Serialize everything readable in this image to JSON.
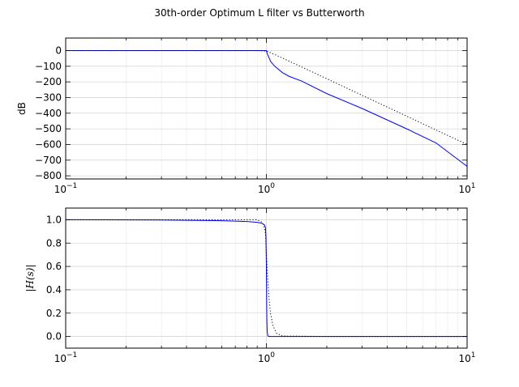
{
  "chart_data": {
    "type": "line",
    "title": "30th-order Optimum L filter vs Butterworth",
    "panels": [
      {
        "ylabel": "dB",
        "xscale": "log",
        "xlim": [
          0.1,
          10
        ],
        "ylim": [
          -820,
          80
        ],
        "yticks": [
          0,
          -100,
          -200,
          -300,
          -400,
          -500,
          -600,
          -700,
          -800
        ],
        "ytick_labels": [
          "0",
          "−100",
          "−200",
          "−300",
          "−400",
          "−500",
          "−600",
          "−700",
          "−800"
        ],
        "grid": true,
        "series": [
          {
            "color": "#0000ff",
            "style": "solid",
            "x": [
              0.1,
              0.2,
              0.5,
              0.8,
              0.95,
              0.99,
              1.0,
              1.01,
              1.03,
              1.05,
              1.1,
              1.2,
              1.3,
              1.5,
              2,
              3,
              5,
              7,
              10
            ],
            "y": [
              0,
              0,
              0,
              0,
              0,
              0,
              0,
              -20,
              -45,
              -70,
              -100,
              -140,
              -165,
              -195,
              -275,
              -370,
              -500,
              -590,
              -740
            ]
          },
          {
            "color": "#000000",
            "style": "dotted",
            "x": [
              0.1,
              0.5,
              0.9,
              1.0,
              1.1,
              1.5,
              2,
              3,
              5,
              7,
              10
            ],
            "y": [
              0,
              0,
              0,
              -3,
              -25,
              -105,
              -180,
              -286,
              -419,
              -507,
              -600
            ]
          }
        ]
      },
      {
        "ylabel": "|H(s)|",
        "xscale": "log",
        "xlim": [
          0.1,
          10
        ],
        "ylim": [
          -0.1,
          1.1
        ],
        "yticks": [
          0.0,
          0.2,
          0.4,
          0.6,
          0.8,
          1.0
        ],
        "ytick_labels": [
          "0.0",
          "0.2",
          "0.4",
          "0.6",
          "0.8",
          "1.0"
        ],
        "grid": true,
        "series": [
          {
            "color": "#0000ff",
            "style": "solid",
            "x": [
              0.1,
              0.3,
              0.6,
              0.8,
              0.9,
              0.95,
              0.98,
              0.99,
              0.995,
              1.0,
              1.003,
              1.006,
              1.01,
              1.015,
              1.02,
              1.05,
              2,
              10
            ],
            "y": [
              1.0,
              0.998,
              0.992,
              0.985,
              0.978,
              0.97,
              0.955,
              0.93,
              0.85,
              0.6,
              0.3,
              0.12,
              0.04,
              0.01,
              0.002,
              0.0,
              0.0,
              0.0
            ]
          },
          {
            "color": "#000000",
            "style": "dotted",
            "x": [
              0.1,
              0.5,
              0.8,
              0.9,
              0.95,
              0.97,
              0.99,
              1.0,
              1.01,
              1.03,
              1.05,
              1.08,
              1.12,
              1.2,
              2,
              10
            ],
            "y": [
              1.0,
              1.0,
              1.0,
              0.999,
              0.98,
              0.95,
              0.88,
              0.707,
              0.55,
              0.33,
              0.19,
              0.09,
              0.03,
              0.004,
              0.0,
              0.0
            ]
          }
        ]
      }
    ]
  }
}
